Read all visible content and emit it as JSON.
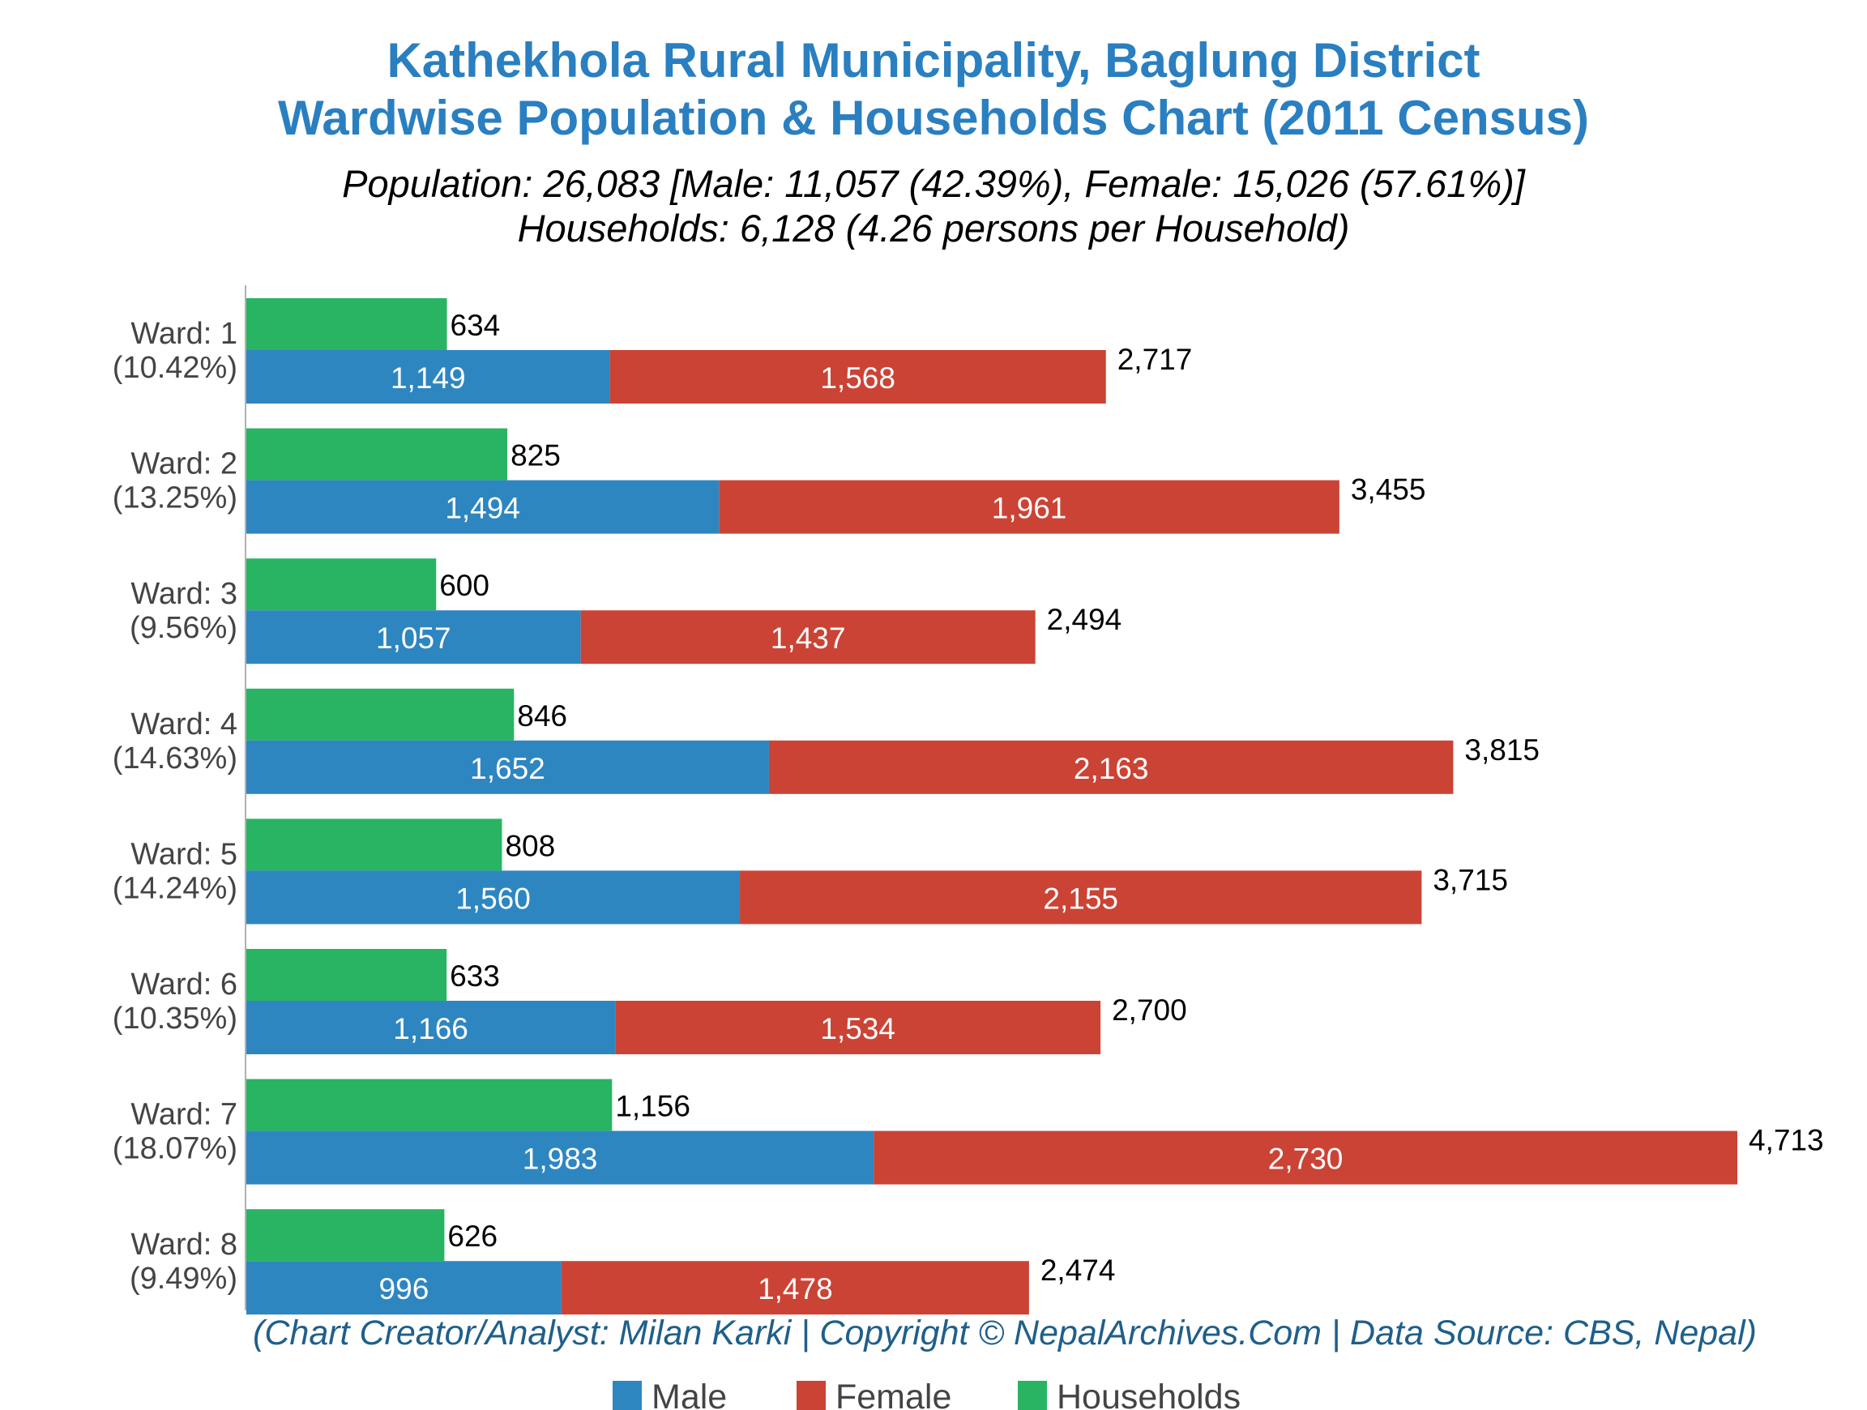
{
  "chart_data": {
    "type": "bar",
    "orientation": "horizontal",
    "stacked_series": [
      "Male",
      "Female"
    ],
    "title": [
      "Kathekhola Rural Municipality, Baglung District",
      "Wardwise Population & Households Chart (2011 Census)"
    ],
    "subtitle": [
      "Population: 26,083 [Male: 11,057 (42.39%), Female: 15,026 (57.61%)]",
      "Households: 6,128 (4.26 persons per Household)"
    ],
    "footer": "(Chart Creator/Analyst: Milan Karki | Copyright © NepalArchives.Com | Data Source: CBS, Nepal)",
    "categories": [
      [
        "Ward: 1",
        "(10.42%)"
      ],
      [
        "Ward: 2",
        "(13.25%)"
      ],
      [
        "Ward: 3",
        "(9.56%)"
      ],
      [
        "Ward: 4",
        "(14.63%)"
      ],
      [
        "Ward: 5",
        "(14.24%)"
      ],
      [
        "Ward: 6",
        "(10.35%)"
      ],
      [
        "Ward: 7",
        "(18.07%)"
      ],
      [
        "Ward: 8",
        "(9.49%)"
      ]
    ],
    "series": [
      {
        "name": "Male",
        "color": "#2e86c1",
        "values": [
          1149,
          1494,
          1057,
          1652,
          1560,
          1166,
          1983,
          996
        ],
        "labels": [
          "1,149",
          "1,494",
          "1,057",
          "1,652",
          "1,560",
          "1,166",
          "1,983",
          "996"
        ]
      },
      {
        "name": "Female",
        "color": "#cb4335",
        "values": [
          1568,
          1961,
          1437,
          2163,
          2155,
          1534,
          2730,
          1478
        ],
        "labels": [
          "1,568",
          "1,961",
          "1,437",
          "2,163",
          "2,155",
          "1,534",
          "2,730",
          "1,478"
        ]
      },
      {
        "name": "Households",
        "color": "#28b463",
        "values": [
          634,
          825,
          600,
          846,
          808,
          633,
          1156,
          626
        ],
        "labels": [
          "634",
          "825",
          "600",
          "846",
          "808",
          "633",
          "1,156",
          "626"
        ]
      }
    ],
    "totals": {
      "values": [
        2717,
        3455,
        2494,
        3815,
        3715,
        2700,
        4713,
        2474
      ],
      "labels": [
        "2,717",
        "3,455",
        "2,494",
        "3,815",
        "3,715",
        "2,700",
        "4,713",
        "2,474"
      ]
    },
    "xlim": [
      0,
      5000
    ],
    "grid": false,
    "legend": {
      "position": "bottom-center",
      "items": [
        "Male",
        "Female",
        "Households"
      ]
    }
  }
}
